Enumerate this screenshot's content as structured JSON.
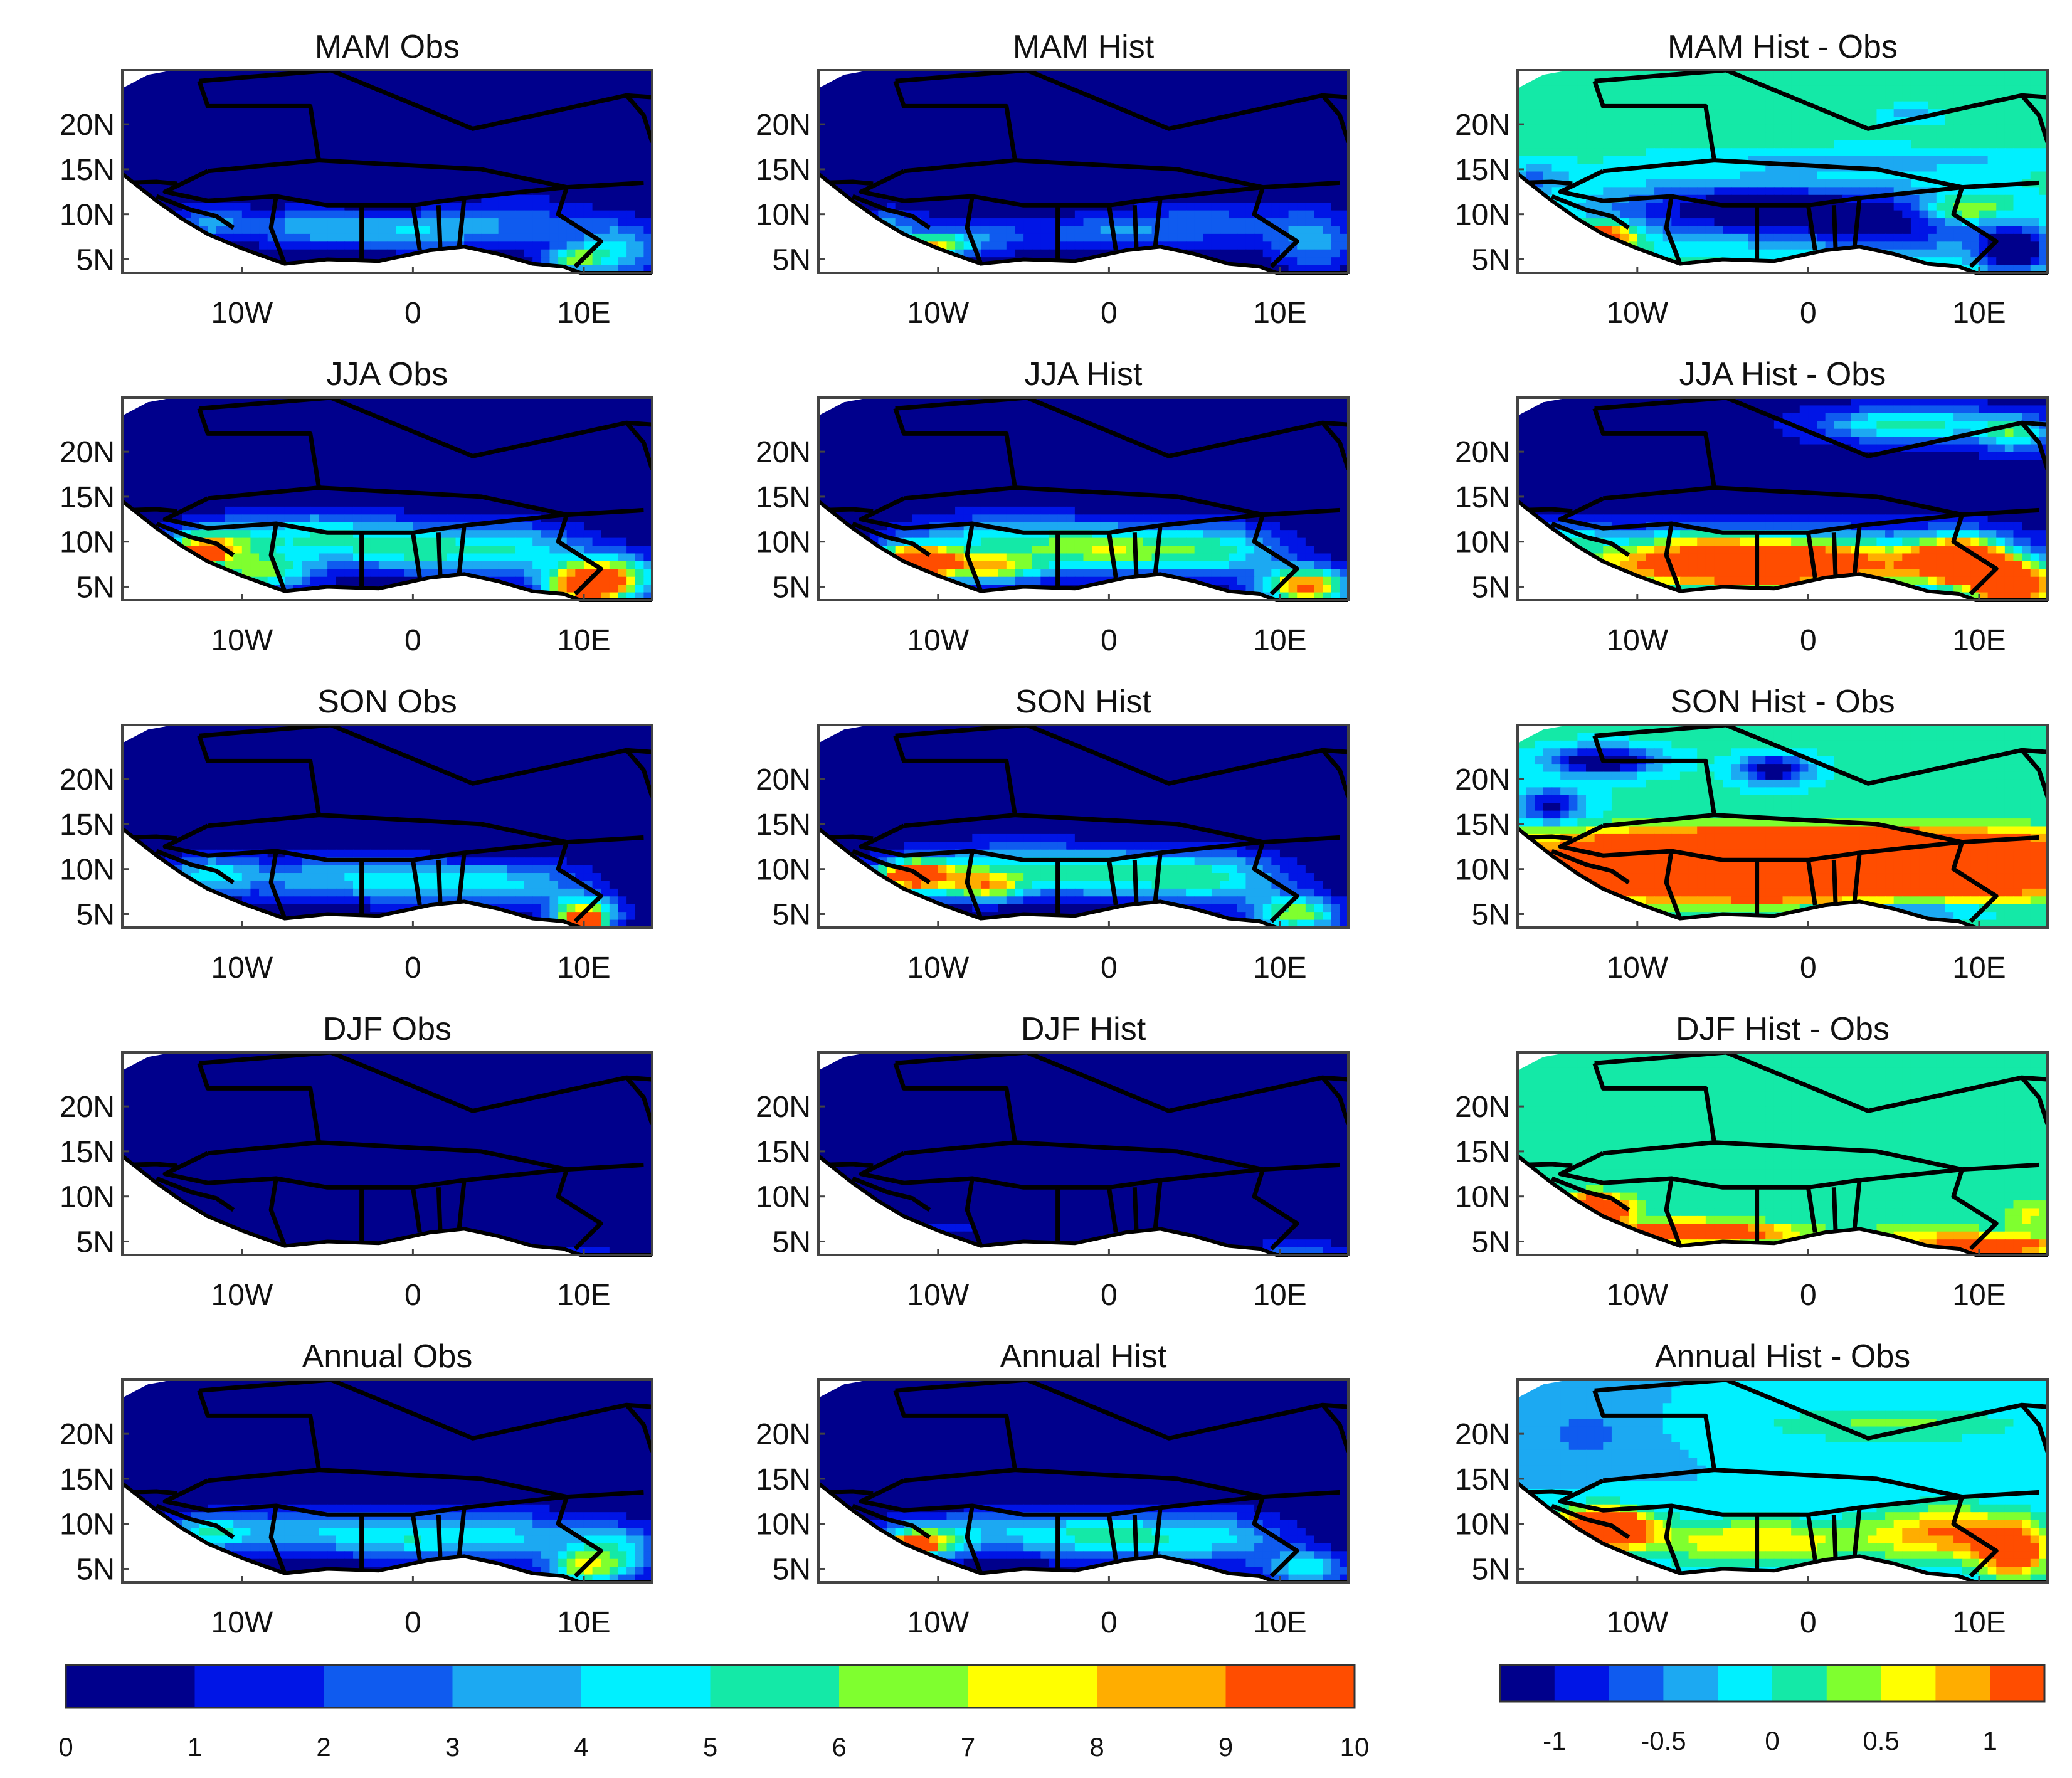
{
  "chart_data": {
    "type": "heatmap",
    "rows": [
      "MAM",
      "JJA",
      "SON",
      "DJF",
      "Annual"
    ],
    "columns": [
      "Obs",
      "Hist",
      "Hist - Obs"
    ],
    "panels": [
      {
        "title": "MAM Obs",
        "row": 0,
        "col": 0,
        "field": "mam_obs"
      },
      {
        "title": "MAM Hist",
        "row": 0,
        "col": 1,
        "field": "mam_hist"
      },
      {
        "title": "MAM Hist - Obs",
        "row": 0,
        "col": 2,
        "field": "mam_diff"
      },
      {
        "title": "JJA Obs",
        "row": 1,
        "col": 0,
        "field": "jja_obs"
      },
      {
        "title": "JJA Hist",
        "row": 1,
        "col": 1,
        "field": "jja_hist"
      },
      {
        "title": "JJA Hist - Obs",
        "row": 1,
        "col": 2,
        "field": "jja_diff"
      },
      {
        "title": "SON Obs",
        "row": 2,
        "col": 0,
        "field": "son_obs"
      },
      {
        "title": "SON Hist",
        "row": 2,
        "col": 1,
        "field": "son_hist"
      },
      {
        "title": "SON Hist - Obs",
        "row": 2,
        "col": 2,
        "field": "son_diff"
      },
      {
        "title": "DJF Obs",
        "row": 3,
        "col": 0,
        "field": "djf_obs"
      },
      {
        "title": "DJF Hist",
        "row": 3,
        "col": 1,
        "field": "djf_hist"
      },
      {
        "title": "DJF Hist - Obs",
        "row": 3,
        "col": 2,
        "field": "djf_diff"
      },
      {
        "title": "Annual Obs",
        "row": 4,
        "col": 0,
        "field": "ann_obs"
      },
      {
        "title": "Annual Hist",
        "row": 4,
        "col": 1,
        "field": "ann_hist"
      },
      {
        "title": "Annual Hist - Obs",
        "row": 4,
        "col": 2,
        "field": "ann_diff"
      }
    ],
    "x_ticks": [
      {
        "value": -10,
        "label": "10W"
      },
      {
        "value": 0,
        "label": "0"
      },
      {
        "value": 10,
        "label": "10E"
      }
    ],
    "y_ticks": [
      {
        "value": 5,
        "label": "5N"
      },
      {
        "value": 10,
        "label": "10N"
      },
      {
        "value": 15,
        "label": "15N"
      },
      {
        "value": 20,
        "label": "20N"
      }
    ],
    "xlim": [
      -17,
      14
    ],
    "ylim": [
      3.5,
      26
    ],
    "land_mask": {
      "south_coast": [
        [
          -17,
          14.5
        ],
        [
          -16,
          13
        ],
        [
          -15,
          11.5
        ],
        [
          -13.5,
          9.5
        ],
        [
          -12,
          7.8
        ],
        [
          -10,
          6.2
        ],
        [
          -7.5,
          4.5
        ],
        [
          -5,
          5
        ],
        [
          -2,
          4.8
        ],
        [
          1,
          6
        ],
        [
          3,
          6.4
        ],
        [
          5,
          5.6
        ],
        [
          7,
          4.5
        ],
        [
          8.8,
          4.2
        ],
        [
          9.8,
          3.5
        ],
        [
          14,
          3.5
        ]
      ],
      "northwest": [
        [
          -17,
          24
        ],
        [
          -15.5,
          25.5
        ],
        [
          -14,
          26
        ]
      ]
    },
    "colorbars": [
      {
        "name": "precipitation",
        "range": [
          0,
          10
        ],
        "ticks": [
          0,
          1,
          2,
          3,
          4,
          5,
          6,
          7,
          8,
          9,
          10
        ],
        "tick_labels": [
          "0",
          "1",
          "2",
          "3",
          "4",
          "5",
          "6",
          "7",
          "8",
          "9",
          "10"
        ],
        "colors": [
          "#00008c",
          "#0015e6",
          "#0f5bef",
          "#1ca9f2",
          "#00f0ff",
          "#14e9a7",
          "#7fff2f",
          "#ffff00",
          "#ffad00",
          "#ff4d00"
        ]
      },
      {
        "name": "difference",
        "range": [
          -1.25,
          1.25
        ],
        "ticks": [
          -1,
          -0.5,
          0,
          0.5,
          1
        ],
        "tick_labels": [
          "-1",
          "-0.5",
          "0",
          "0.5",
          "1"
        ],
        "colors": [
          "#00008c",
          "#0015e6",
          "#0f5bef",
          "#1ca9f2",
          "#00f0ff",
          "#14e9a7",
          "#7fff2f",
          "#ffff00",
          "#ffad00",
          "#ff4d00"
        ]
      }
    ],
    "fields": {
      "mam_obs": {
        "scale": "precip",
        "base": 0,
        "blobs": [
          [
            -6,
            8.5,
            4,
            2.2,
            3.4
          ],
          [
            0,
            8,
            4,
            2,
            3.2
          ],
          [
            6,
            9,
            5,
            3,
            2.6
          ],
          [
            12,
            6,
            2.5,
            3,
            4.2
          ],
          [
            -12,
            9,
            2.5,
            2,
            3.0
          ],
          [
            9.5,
            5,
            1.6,
            1.3,
            5.3
          ]
        ]
      },
      "mam_hist": {
        "scale": "precip",
        "base": 0,
        "blobs": [
          [
            -8,
            7.5,
            4,
            2.2,
            2.6
          ],
          [
            -10.5,
            6.5,
            2.2,
            1.2,
            6.5
          ],
          [
            0,
            8,
            4,
            2,
            2.6
          ],
          [
            6,
            9,
            5,
            3,
            2.2
          ],
          [
            12,
            7,
            2.5,
            3.5,
            3.2
          ],
          [
            -13,
            9,
            2,
            1.8,
            2.8
          ]
        ]
      },
      "mam_diff": {
        "scale": "diff",
        "base": 0.05,
        "blobs": [
          [
            -4,
            10.5,
            8,
            3,
            -1.3
          ],
          [
            5,
            9,
            6,
            3.5,
            -1.0
          ],
          [
            -12,
            7.5,
            1.8,
            1.4,
            1.9
          ],
          [
            9,
            10.5,
            2.5,
            1.5,
            1.0
          ],
          [
            4,
            16,
            10,
            1.2,
            -0.45
          ],
          [
            6,
            21,
            1.5,
            0.8,
            -0.5
          ],
          [
            12,
            6,
            2,
            2.5,
            -1.5
          ],
          [
            -16,
            14,
            2,
            1.5,
            -0.6
          ]
        ]
      },
      "jja_obs": {
        "scale": "precip",
        "base": 0,
        "blobs": [
          [
            -6,
            10.5,
            6,
            3,
            4.8
          ],
          [
            0,
            9,
            4,
            2.5,
            3.6
          ],
          [
            6,
            9,
            4.5,
            3,
            4.6
          ],
          [
            -12,
            9.5,
            2.6,
            2,
            6.4
          ],
          [
            -12.5,
            8.5,
            1.1,
            0.9,
            9.5
          ],
          [
            10,
            5,
            2.2,
            2.2,
            9.6
          ],
          [
            12,
            6,
            2.5,
            2.5,
            6.2
          ],
          [
            -9,
            6.5,
            3,
            2,
            5.8
          ]
        ]
      },
      "jja_hist": {
        "scale": "precip",
        "base": 0,
        "blobs": [
          [
            -6,
            10,
            6,
            3,
            4.8
          ],
          [
            0,
            9,
            4,
            2.5,
            4.6
          ],
          [
            6,
            9,
            4.5,
            3,
            5.2
          ],
          [
            -11.5,
            8,
            2.6,
            1.8,
            7.8
          ],
          [
            -11,
            7.5,
            1.4,
            1.2,
            9.6
          ],
          [
            11.5,
            5,
            2.4,
            2,
            9.6
          ],
          [
            -7,
            7,
            3,
            1.6,
            6.2
          ]
        ]
      },
      "jja_diff": {
        "scale": "diff",
        "base": -1.1,
        "blobs": [
          [
            -3,
            7.5,
            11,
            3,
            3.2
          ],
          [
            9,
            8,
            2.5,
            2.5,
            2.8
          ],
          [
            12,
            5,
            2.5,
            2.5,
            3.0
          ],
          [
            -14,
            10.5,
            2,
            1.5,
            0.8
          ],
          [
            6,
            23,
            5,
            1.8,
            1.3
          ],
          [
            12,
            22,
            2,
            2,
            1.1
          ],
          [
            -6,
            10.5,
            3,
            1.2,
            0.5
          ]
        ]
      },
      "son_obs": {
        "scale": "precip",
        "base": 0,
        "blobs": [
          [
            -6,
            9,
            6,
            2.5,
            3.3
          ],
          [
            0,
            8.5,
            4,
            2.5,
            3.0
          ],
          [
            6,
            8.5,
            4.5,
            2.5,
            3.8
          ],
          [
            -12,
            9.5,
            2.5,
            2,
            3.6
          ],
          [
            10,
            5,
            2,
            2,
            7.2
          ],
          [
            10,
            4,
            1,
            1,
            9.6
          ]
        ]
      },
      "son_hist": {
        "scale": "precip",
        "base": 0,
        "blobs": [
          [
            -6,
            10,
            6,
            3,
            4.2
          ],
          [
            0,
            9.5,
            4,
            2.5,
            3.8
          ],
          [
            6,
            9,
            4.5,
            3,
            5.0
          ],
          [
            -11,
            9,
            3,
            2,
            6.5
          ],
          [
            -11.5,
            9.5,
            1.3,
            1,
            9.6
          ],
          [
            11,
            5,
            2.5,
            2,
            6.6
          ],
          [
            -7,
            8,
            2,
            1.5,
            5.2
          ]
        ]
      },
      "son_diff": {
        "scale": "diff",
        "base": 0.05,
        "blobs": [
          [
            0,
            10,
            15,
            3,
            4.0
          ],
          [
            0,
            13.5,
            15,
            1.4,
            0.9
          ],
          [
            -12,
            22,
            3,
            1.5,
            -1.6
          ],
          [
            -2,
            21,
            2,
            1.5,
            -1.4
          ],
          [
            -15,
            17,
            2,
            2,
            -1.1
          ],
          [
            5,
            5.5,
            5,
            1.2,
            -1.0
          ]
        ]
      },
      "djf_obs": {
        "scale": "precip",
        "base": 0,
        "blobs": [
          [
            10,
            4,
            2.5,
            1,
            1.3
          ]
        ]
      },
      "djf_hist": {
        "scale": "precip",
        "base": 0,
        "blobs": [
          [
            -10,
            6.5,
            2.5,
            1.2,
            1.7
          ],
          [
            11,
            4,
            3,
            1.2,
            2.7
          ]
        ]
      },
      "djf_diff": {
        "scale": "diff",
        "base": 0.05,
        "blobs": [
          [
            -12.5,
            8.5,
            1.8,
            1.5,
            2.8
          ],
          [
            -7,
            6,
            4,
            1.2,
            1.8
          ],
          [
            -2,
            6,
            3,
            1,
            0.5
          ],
          [
            7,
            5.5,
            3.5,
            1.5,
            0.6
          ],
          [
            11,
            4.5,
            3,
            1,
            1.8
          ],
          [
            13,
            8,
            1.5,
            2,
            0.5
          ]
        ]
      },
      "ann_obs": {
        "scale": "precip",
        "base": 0,
        "blobs": [
          [
            -6,
            9,
            6,
            2.5,
            3.6
          ],
          [
            0,
            8.5,
            4,
            2.5,
            3.2
          ],
          [
            6,
            8.5,
            4.5,
            3,
            3.8
          ],
          [
            -12,
            9,
            2.5,
            2,
            4.0
          ],
          [
            10,
            5,
            2,
            2,
            5.6
          ],
          [
            12,
            7,
            2.5,
            3,
            4.2
          ]
        ]
      },
      "ann_hist": {
        "scale": "precip",
        "base": 0,
        "blobs": [
          [
            -6,
            9,
            6,
            2.5,
            3.6
          ],
          [
            0,
            8.5,
            4,
            2.5,
            3.6
          ],
          [
            6,
            8.5,
            4.5,
            3,
            4.2
          ],
          [
            -11,
            8,
            2.5,
            2,
            5.6
          ],
          [
            -11.5,
            7.5,
            1.3,
            1,
            7.6
          ],
          [
            11.5,
            5,
            2.5,
            2,
            4.6
          ]
        ]
      },
      "ann_diff": {
        "scale": "diff",
        "base": -0.25,
        "blobs": [
          [
            -12,
            9.5,
            2.5,
            2,
            3.0
          ],
          [
            -3,
            8,
            7,
            2.5,
            1.0
          ],
          [
            8,
            9,
            4,
            3,
            1.2
          ],
          [
            12,
            7,
            2,
            3,
            1.8
          ],
          [
            5,
            21,
            8,
            2,
            0.55
          ],
          [
            -13,
            20,
            3,
            3,
            -0.35
          ]
        ]
      }
    }
  }
}
